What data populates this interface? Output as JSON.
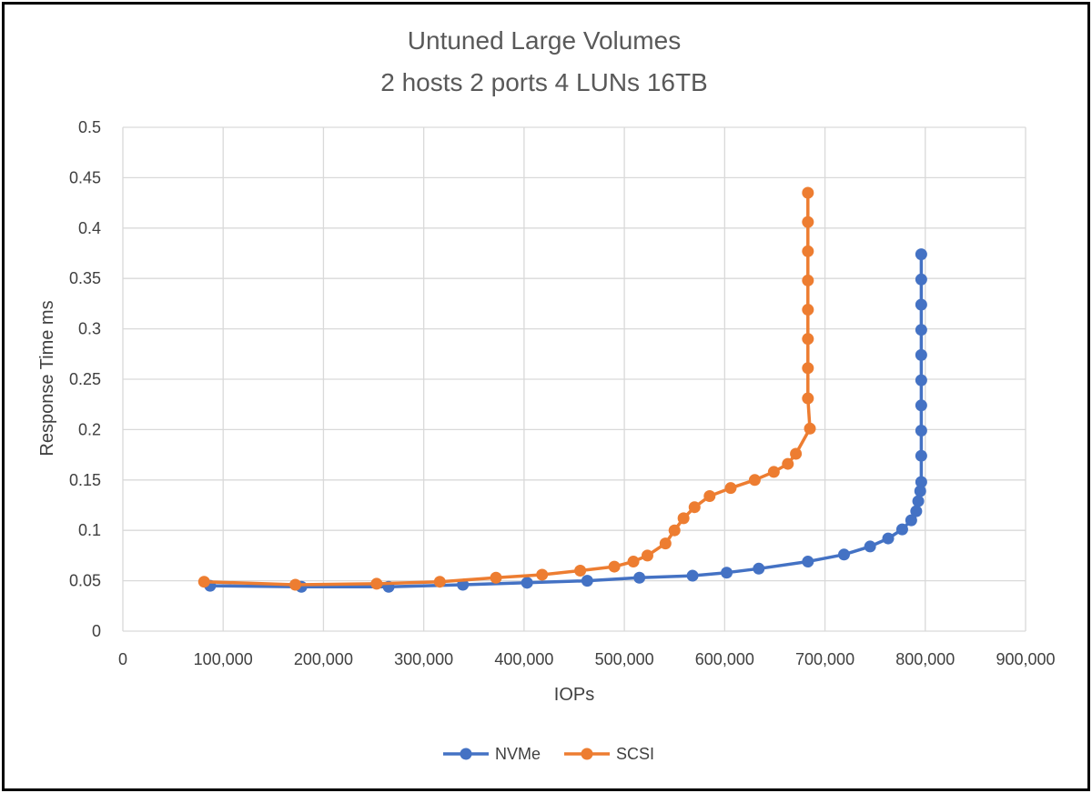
{
  "colors": {
    "nvme": "#4472C4",
    "scsi": "#ED7D31",
    "grid": "#D9D9D9",
    "text": "#404040",
    "title": "#595959"
  },
  "chart_data": {
    "type": "scatter",
    "title": "Untuned Large Volumes",
    "subtitle": "2 hosts 2 ports 4 LUNs 16TB",
    "xlabel": "IOPs",
    "ylabel": "Response Time ms",
    "xlim": [
      0,
      900000
    ],
    "ylim": [
      0,
      0.5
    ],
    "x_ticks": [
      0,
      100000,
      200000,
      300000,
      400000,
      500000,
      600000,
      700000,
      800000,
      900000
    ],
    "x_tick_labels": [
      "0",
      "100,000",
      "200,000",
      "300,000",
      "400,000",
      "500,000",
      "600,000",
      "700,000",
      "800,000",
      "900,000"
    ],
    "y_ticks": [
      0,
      0.05,
      0.1,
      0.15,
      0.2,
      0.25,
      0.3,
      0.35,
      0.4,
      0.45,
      0.5
    ],
    "y_tick_labels": [
      "0",
      "0.05",
      "0.1",
      "0.15",
      "0.2",
      "0.25",
      "0.3",
      "0.35",
      "0.4",
      "0.45",
      "0.5"
    ],
    "grid": true,
    "legend_position": "bottom",
    "series": [
      {
        "name": "NVMe",
        "color": "#4472C4",
        "points": [
          [
            87000,
            0.045
          ],
          [
            178000,
            0.044
          ],
          [
            265000,
            0.044
          ],
          [
            339000,
            0.046
          ],
          [
            403000,
            0.048
          ],
          [
            463000,
            0.05
          ],
          [
            515000,
            0.053
          ],
          [
            568000,
            0.055
          ],
          [
            602000,
            0.058
          ],
          [
            634000,
            0.062
          ],
          [
            683000,
            0.069
          ],
          [
            719000,
            0.076
          ],
          [
            745000,
            0.084
          ],
          [
            763000,
            0.092
          ],
          [
            777000,
            0.101
          ],
          [
            786000,
            0.11
          ],
          [
            791000,
            0.119
          ],
          [
            793000,
            0.129
          ],
          [
            795000,
            0.139
          ],
          [
            796000,
            0.148
          ],
          [
            796000,
            0.174
          ],
          [
            796000,
            0.199
          ],
          [
            796000,
            0.224
          ],
          [
            796000,
            0.249
          ],
          [
            796000,
            0.274
          ],
          [
            796000,
            0.299
          ],
          [
            796000,
            0.324
          ],
          [
            796000,
            0.349
          ],
          [
            796000,
            0.374
          ]
        ]
      },
      {
        "name": "SCSI",
        "color": "#ED7D31",
        "points": [
          [
            81000,
            0.049
          ],
          [
            172000,
            0.046
          ],
          [
            253000,
            0.047
          ],
          [
            316000,
            0.049
          ],
          [
            372000,
            0.053
          ],
          [
            418000,
            0.056
          ],
          [
            456000,
            0.06
          ],
          [
            490000,
            0.064
          ],
          [
            509000,
            0.069
          ],
          [
            523000,
            0.075
          ],
          [
            541000,
            0.087
          ],
          [
            550000,
            0.1
          ],
          [
            559000,
            0.112
          ],
          [
            570000,
            0.123
          ],
          [
            585000,
            0.134
          ],
          [
            606000,
            0.142
          ],
          [
            630000,
            0.15
          ],
          [
            649000,
            0.158
          ],
          [
            663000,
            0.166
          ],
          [
            671000,
            0.176
          ],
          [
            685000,
            0.201
          ],
          [
            683000,
            0.231
          ],
          [
            683000,
            0.261
          ],
          [
            683000,
            0.29
          ],
          [
            683000,
            0.319
          ],
          [
            683000,
            0.348
          ],
          [
            683000,
            0.377
          ],
          [
            683000,
            0.406
          ],
          [
            683000,
            0.435
          ]
        ]
      }
    ]
  }
}
